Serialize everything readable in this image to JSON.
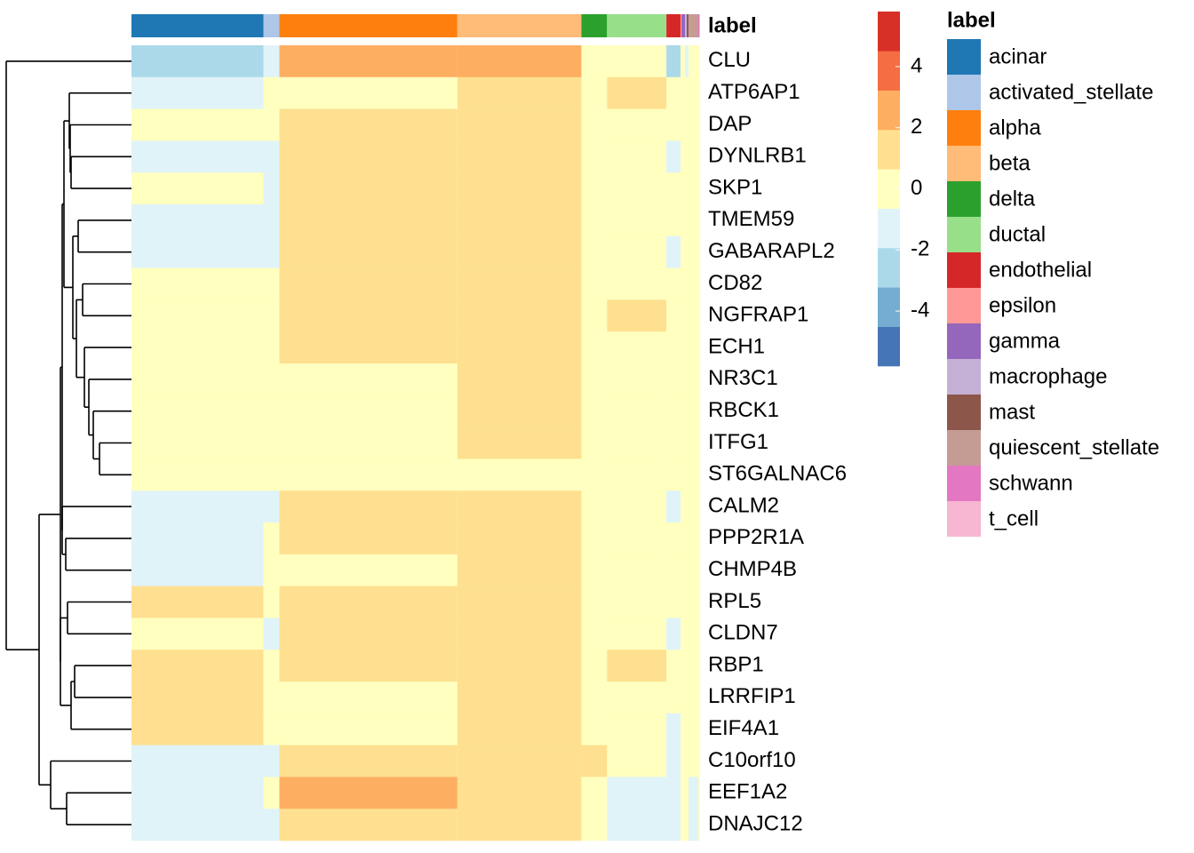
{
  "chart_data": {
    "type": "heatmap",
    "annotation_title": "label",
    "legend_title": "label",
    "groups": [
      "acinar",
      "activated_stellate",
      "alpha",
      "beta",
      "delta",
      "ductal",
      "endothelial",
      "epsilon",
      "gamma",
      "macrophage",
      "mast",
      "quiescent_stellate",
      "schwann",
      "t_cell"
    ],
    "group_colors": [
      "#1f77b4",
      "#aec7e8",
      "#ff7f0e",
      "#ffbb78",
      "#2ca02c",
      "#98df8a",
      "#d62728",
      "#ff9896",
      "#9467bd",
      "#c5b0d5",
      "#8c564b",
      "#c49c94",
      "#e377c2",
      "#f7b6d2"
    ],
    "column_counts": [
      149,
      18,
      201,
      140,
      29,
      67,
      16,
      1,
      4,
      2,
      2,
      11,
      1,
      1
    ],
    "rows": [
      "CLU",
      "ATP6AP1",
      "DAP",
      "DYNLRB1",
      "SKP1",
      "TMEM59",
      "GABARAPL2",
      "CD82",
      "NGFRAP1",
      "ECH1",
      "NR3C1",
      "RBCK1",
      "ITFG1",
      "ST6GALNAC6",
      "CALM2",
      "PPP2R1A",
      "CHMP4B",
      "RPL5",
      "CLDN7",
      "RBP1",
      "LRRFIP1",
      "EIF4A1",
      "C10orf10",
      "EEF1A2",
      "DNAJC12"
    ],
    "values": [
      [
        -2.2,
        -1.5,
        3.2,
        2.4,
        0.4,
        0.6,
        -2.1,
        0.5,
        0,
        -1,
        -1,
        -0.5,
        0,
        0
      ],
      [
        -0.9,
        -0.4,
        0.6,
        0.9,
        0.2,
        0.7,
        0.1,
        0,
        0.3,
        0,
        0,
        0.2,
        0,
        0
      ],
      [
        -0.4,
        -0.6,
        0.7,
        1.0,
        0.4,
        0.2,
        -0.3,
        0,
        0,
        0,
        0,
        0,
        0,
        0
      ],
      [
        -0.8,
        -0.8,
        1.0,
        0.8,
        0.4,
        -0.2,
        -0.8,
        0,
        0,
        0,
        0,
        -0.5,
        0,
        0
      ],
      [
        -0.6,
        -0.8,
        1.2,
        0.8,
        0.4,
        0.3,
        -0.3,
        0,
        0,
        0,
        0,
        0,
        0,
        0
      ],
      [
        -0.9,
        -0.9,
        1.5,
        0.7,
        0.2,
        0.4,
        -0.6,
        0,
        0,
        0,
        0,
        -0.3,
        0,
        0
      ],
      [
        -1.1,
        -0.9,
        0.9,
        0.7,
        0.2,
        0.4,
        -0.7,
        0,
        0,
        0,
        0,
        -0.5,
        0,
        0
      ],
      [
        0.1,
        0.3,
        1.5,
        0.8,
        0.5,
        0.6,
        0.3,
        0,
        0,
        0,
        0,
        0.2,
        0,
        0
      ],
      [
        0.2,
        0.2,
        1.0,
        1.0,
        0.4,
        0.7,
        0.3,
        0,
        0,
        0,
        0,
        0.2,
        0,
        0
      ],
      [
        0.3,
        0.3,
        0.8,
        0.9,
        0.3,
        0.6,
        0.3,
        0,
        0,
        0,
        0,
        0.2,
        0,
        0
      ],
      [
        0.4,
        0.3,
        0.6,
        0.7,
        0.3,
        0.5,
        0.5,
        0,
        0,
        0,
        0,
        0.2,
        0,
        0
      ],
      [
        0.3,
        0.2,
        0.6,
        0.8,
        0.3,
        0.6,
        0.3,
        0,
        0,
        0,
        0,
        0.2,
        0,
        0
      ],
      [
        0.2,
        0.2,
        0.5,
        0.7,
        0.3,
        0.5,
        0.3,
        0,
        0,
        0,
        0,
        0.2,
        0,
        0
      ],
      [
        0.1,
        0.2,
        0.4,
        0.6,
        0.3,
        0.5,
        0.2,
        0,
        0,
        0,
        0,
        0.2,
        0,
        0
      ],
      [
        -0.8,
        -0.7,
        0.9,
        1.6,
        0.5,
        0.4,
        -0.7,
        0,
        0,
        0,
        0,
        -0.5,
        0,
        0
      ],
      [
        -0.9,
        -0.6,
        0.7,
        1.2,
        0.3,
        0.2,
        -0.6,
        0,
        0,
        0,
        0,
        -0.5,
        0,
        0
      ],
      [
        -0.8,
        -0.6,
        0.6,
        0.8,
        0.3,
        0.3,
        -0.5,
        0,
        0,
        0,
        0,
        -0.4,
        0,
        0
      ],
      [
        1.0,
        0.6,
        0.7,
        0.8,
        0.5,
        0.6,
        0.4,
        0,
        0,
        0,
        0,
        0.2,
        0,
        0
      ],
      [
        0.6,
        -0.7,
        0.9,
        0.9,
        0.5,
        0.5,
        -1.0,
        0,
        0,
        0,
        0,
        -0.6,
        0,
        0
      ],
      [
        0.8,
        0.6,
        0.7,
        1.2,
        0.6,
        0.7,
        0.5,
        0,
        0,
        0,
        0,
        0.3,
        0,
        0
      ],
      [
        0.8,
        0.6,
        0.6,
        0.9,
        0.5,
        0.6,
        0.5,
        0,
        0,
        0,
        0,
        0.3,
        0,
        0
      ],
      [
        0.9,
        0.5,
        0.6,
        0.8,
        0.4,
        0.4,
        -0.7,
        0,
        0,
        0,
        0,
        -0.3,
        0,
        0
      ],
      [
        -1.3,
        -0.8,
        1.8,
        1.6,
        0.7,
        -0.3,
        -0.9,
        0,
        0,
        0,
        0,
        -0.6,
        0,
        0
      ],
      [
        -1.2,
        -0.6,
        2.0,
        1.7,
        0.4,
        -0.8,
        -1.0,
        0,
        0,
        0,
        0,
        -0.8,
        0,
        0
      ],
      [
        -1.0,
        -0.8,
        1.3,
        1.5,
        0.3,
        -1.0,
        -0.9,
        0,
        0,
        0,
        0,
        -0.8,
        0,
        0
      ]
    ],
    "colorbar_lim": [
      -5.8,
      5.8
    ],
    "colorbar_ticks": [
      -4,
      -2,
      0,
      2,
      4
    ],
    "colors": [
      "#4575b4",
      "#74add1",
      "#abd9e9",
      "#e0f3f8",
      "#ffffbf",
      "#fee090",
      "#fdae61",
      "#f46d43",
      "#d73027"
    ]
  }
}
